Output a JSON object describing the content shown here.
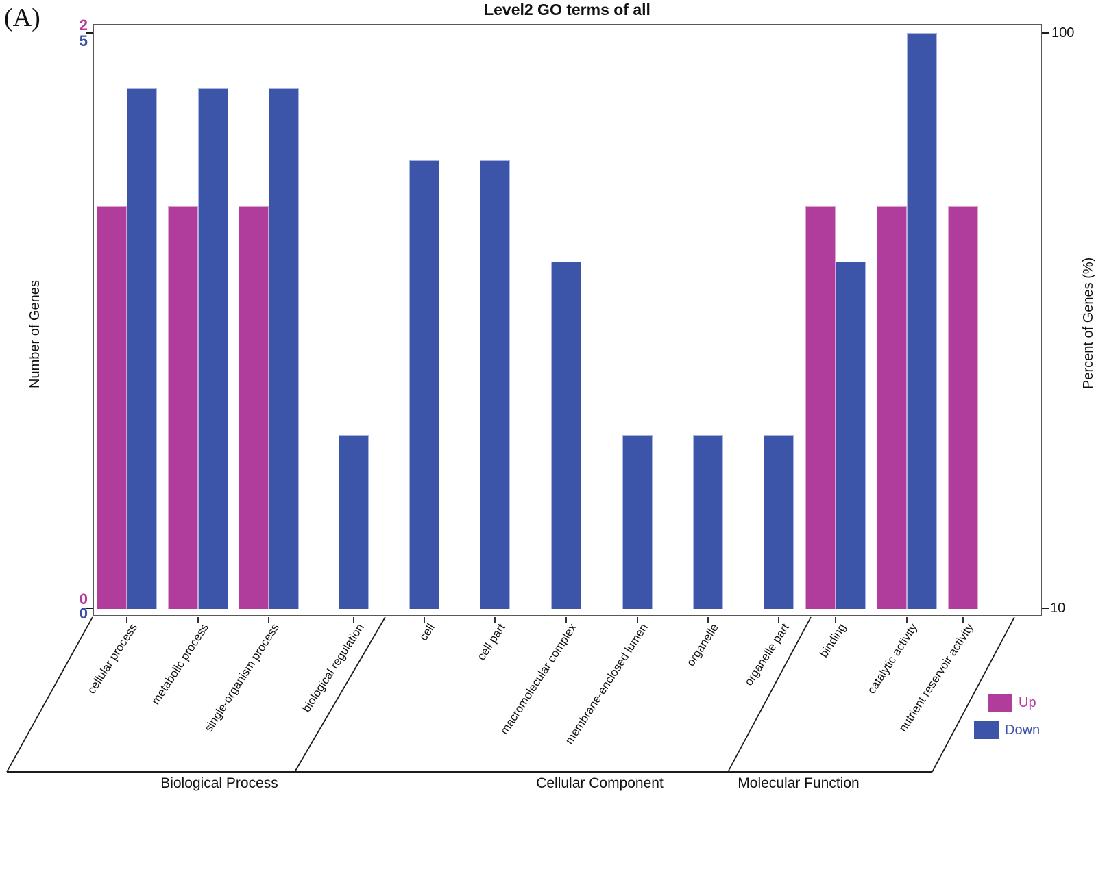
{
  "panel_label": "(A)",
  "chart_data": {
    "type": "bar",
    "title": "Level2 GO terms of all",
    "ylabel_left": "Number of Genes",
    "ylabel_right": "Percent of Genes (%)",
    "y_right_scale": "log10",
    "y_right_ticks": [
      "100",
      "10"
    ],
    "left_axis_ticks": {
      "top_up": "2",
      "top_down": "5",
      "bottom_up": "0",
      "bottom_down": "0"
    },
    "totals": {
      "up": 2,
      "down": 5
    },
    "series": [
      {
        "name": "Up",
        "color": "#b03c9c",
        "text_color": "#b5399e"
      },
      {
        "name": "Down",
        "color": "#3c55a8",
        "text_color": "#3b4fa7"
      }
    ],
    "groups": [
      {
        "label": "Biological Process",
        "categories": [
          {
            "name": "cellular process",
            "up": 1,
            "down": 4
          },
          {
            "name": "metabolic process",
            "up": 1,
            "down": 4
          },
          {
            "name": "single-organism process",
            "up": 1,
            "down": 4
          },
          {
            "name": "biological regulation",
            "up": 0,
            "down": 1
          }
        ]
      },
      {
        "label": "Cellular Component",
        "categories": [
          {
            "name": "cell",
            "up": 0,
            "down": 3
          },
          {
            "name": "cell part",
            "up": 0,
            "down": 3
          },
          {
            "name": "macromolecular complex",
            "up": 0,
            "down": 2
          },
          {
            "name": "membrane-enclosed lumen",
            "up": 0,
            "down": 1
          },
          {
            "name": "organelle",
            "up": 0,
            "down": 1
          },
          {
            "name": "organelle part",
            "up": 0,
            "down": 1
          }
        ]
      },
      {
        "label": "Molecular Function",
        "categories": [
          {
            "name": "binding",
            "up": 1,
            "down": 2
          },
          {
            "name": "catalytic activity",
            "up": 1,
            "down": 5
          },
          {
            "name": "nutrient reservoir activity",
            "up": 1,
            "down": 0
          }
        ]
      }
    ],
    "legend": {
      "position": "bottom-right"
    }
  }
}
